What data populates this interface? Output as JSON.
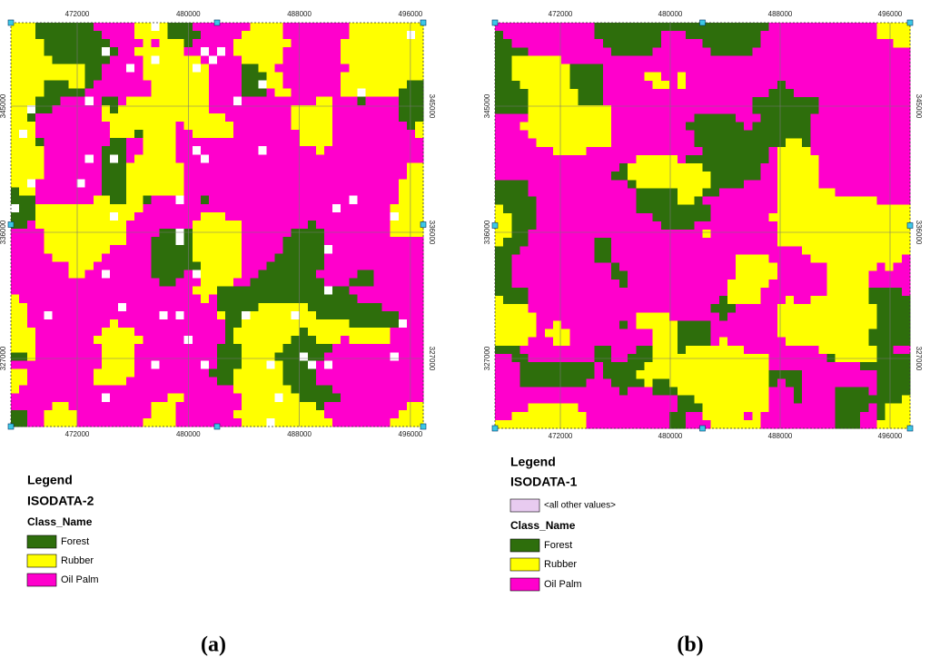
{
  "panels": [
    {
      "label": "(a)",
      "x_ticks": [
        472000,
        480000,
        488000,
        496000
      ],
      "y_ticks": [
        345000,
        336000,
        327000
      ],
      "legend": {
        "title": "Legend",
        "layer": "ISODATA-2",
        "field": "Class_Name",
        "classes": [
          {
            "name": "Forest",
            "color": "#2e6e0c"
          },
          {
            "name": "Rubber",
            "color": "#ffff00"
          },
          {
            "name": "Oil Palm",
            "color": "#ff00cc"
          }
        ]
      }
    },
    {
      "label": "(b)",
      "x_ticks": [
        472000,
        480000,
        488000,
        496000
      ],
      "y_ticks": [
        345000,
        336000,
        327000
      ],
      "legend": {
        "title": "Legend",
        "layer": "ISODATA-1",
        "other": {
          "name": "<all other values>",
          "color": "#e8cbf0"
        },
        "field": "Class_Name",
        "classes": [
          {
            "name": "Forest",
            "color": "#2e6e0c"
          },
          {
            "name": "Rubber",
            "color": "#ffff00"
          },
          {
            "name": "Oil Palm",
            "color": "#ff00cc"
          }
        ]
      }
    }
  ]
}
